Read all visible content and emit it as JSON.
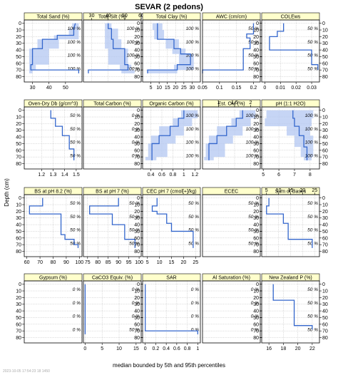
{
  "chart_data": {
    "type": "line",
    "title": "SEVAR (2 pedons)",
    "xlabel": "median bounded by 5th and 95th percentiles",
    "ylabel": "Depth (cm)",
    "footer_stamp": "2023-10-05 17:54:23 18 1450",
    "depth_ticks": [
      0,
      10,
      20,
      30,
      40,
      50,
      60,
      70,
      80
    ],
    "ylim": [
      -5,
      88
    ],
    "grid": true,
    "colors": {
      "median": "#3366cc",
      "band": "#b3c7f2",
      "strip": "#ffffcc"
    },
    "pct_depths": [
      8,
      28,
      48,
      68
    ],
    "panels": [
      {
        "name": "Total Sand (%)",
        "xlim": [
          25,
          60
        ],
        "ticks": [
          30,
          40,
          50
        ],
        "tick_axis": "bottom",
        "pct_labels": [
          "100 %",
          "100 %",
          "100 %",
          "100 %"
        ],
        "median": [
          [
            56,
            0
          ],
          [
            55,
            8
          ],
          [
            55,
            18
          ],
          [
            45,
            18
          ],
          [
            45,
            24
          ],
          [
            36,
            24
          ],
          [
            36,
            38
          ],
          [
            30,
            38
          ],
          [
            30,
            62
          ],
          [
            29,
            62
          ],
          [
            29,
            70
          ],
          [
            58,
            70
          ],
          [
            58,
            75
          ]
        ],
        "band": [
          [
            54,
            58,
            0
          ],
          [
            52,
            58,
            8
          ],
          [
            43,
            58,
            18
          ],
          [
            33,
            46,
            24
          ],
          [
            28,
            40,
            38
          ],
          [
            28,
            32,
            62
          ],
          [
            28,
            30,
            70
          ]
        ]
      },
      {
        "name": "Total Silt (%)",
        "xlim": [
          25,
          60
        ],
        "ticks": [
          30,
          40,
          50,
          60
        ],
        "tick_axis": "top",
        "pct_labels": [
          "100 %",
          "100 %",
          "100 %",
          "100 %"
        ],
        "median": [
          [
            40,
            0
          ],
          [
            40,
            8
          ],
          [
            42,
            8
          ],
          [
            42,
            24
          ],
          [
            43,
            24
          ],
          [
            43,
            38
          ],
          [
            50,
            38
          ],
          [
            50,
            62
          ],
          [
            52,
            62
          ],
          [
            52,
            70
          ],
          [
            28,
            70
          ],
          [
            28,
            75
          ]
        ],
        "band": [
          [
            38,
            42,
            0
          ],
          [
            38,
            46,
            8
          ],
          [
            38,
            48,
            24
          ],
          [
            40,
            52,
            38
          ],
          [
            47,
            54,
            62
          ],
          [
            48,
            56,
            70
          ]
        ]
      },
      {
        "name": "Total Clay (%)",
        "xlim": [
          0,
          35
        ],
        "ticks": [
          5,
          10,
          15,
          20,
          25,
          30
        ],
        "tick_axis": "bottom",
        "pct_labels": [
          "100 %",
          "100 %",
          "100 %",
          "100 %"
        ],
        "median": [
          [
            9,
            0
          ],
          [
            9,
            10
          ],
          [
            9,
            10
          ],
          [
            9,
            24
          ],
          [
            19,
            24
          ],
          [
            19,
            38
          ],
          [
            23,
            38
          ],
          [
            23,
            46
          ],
          [
            29,
            46
          ],
          [
            29,
            62
          ],
          [
            21,
            62
          ],
          [
            21,
            70
          ],
          [
            3,
            70
          ],
          [
            3,
            75
          ]
        ],
        "band": [
          [
            6,
            12,
            0
          ],
          [
            7,
            13,
            10
          ],
          [
            14,
            22,
            24
          ],
          [
            18,
            26,
            38
          ],
          [
            22,
            31,
            46
          ],
          [
            19,
            31,
            62
          ],
          [
            3,
            21,
            70
          ]
        ]
      },
      {
        "name": "AWC (cm/cm)",
        "xlim": [
          0.05,
          0.22
        ],
        "ticks": [
          0.05,
          0.1,
          0.15,
          0.2
        ],
        "tick_axis": "bottom",
        "pct_labels": [
          "50 %",
          "50 %",
          "50 %",
          "50 %"
        ],
        "median": [
          [
            0.2,
            0
          ],
          [
            0.2,
            16
          ],
          [
            0.18,
            16
          ],
          [
            0.18,
            22
          ],
          [
            0.19,
            22
          ],
          [
            0.19,
            38
          ],
          [
            0.17,
            38
          ],
          [
            0.17,
            70
          ],
          [
            0.05,
            70
          ],
          [
            0.05,
            75
          ]
        ],
        "band": []
      },
      {
        "name": "COLEws",
        "xlim": [
          -0.002,
          0.035
        ],
        "ticks": [
          0.0,
          0.01,
          0.02,
          0.03
        ],
        "tick_axis": "bottom",
        "pct_labels": [
          "50 %",
          "50 %",
          "50 %",
          "50 %"
        ],
        "median": [
          [
            0.012,
            0
          ],
          [
            0.012,
            12
          ],
          [
            0.008,
            12
          ],
          [
            0.008,
            20
          ],
          [
            0.003,
            20
          ],
          [
            0.003,
            40
          ],
          [
            0.03,
            40
          ],
          [
            0.03,
            62
          ],
          [
            0.034,
            62
          ],
          [
            0.034,
            70
          ]
        ],
        "band": []
      },
      {
        "name": "Oven-Dry Db (g/cm^3)",
        "xlim": [
          1.05,
          1.55
        ],
        "ticks": [
          1.2,
          1.3,
          1.4,
          1.5
        ],
        "tick_axis": "bottom",
        "pct_labels": [
          "50 %",
          "50 %",
          "50 %",
          "50 %"
        ],
        "median": [
          [
            1.28,
            0
          ],
          [
            1.28,
            12
          ],
          [
            1.32,
            12
          ],
          [
            1.32,
            24
          ],
          [
            1.38,
            24
          ],
          [
            1.38,
            38
          ],
          [
            1.44,
            38
          ],
          [
            1.44,
            58
          ],
          [
            1.48,
            58
          ],
          [
            1.48,
            75
          ]
        ],
        "band": []
      },
      {
        "name": "Total Carbon (%)",
        "xlim": [
          0,
          1
        ],
        "ticks": [],
        "tick_axis": "top",
        "pct_labels": [
          "0 %",
          "0 %",
          "0 %",
          "0 %"
        ],
        "median": [],
        "band": []
      },
      {
        "name": "Organic Carbon (%)",
        "xlim": [
          0.25,
          1.3
        ],
        "ticks": [
          0.4,
          0.6,
          0.8,
          1.0,
          1.2
        ],
        "tick_axis": "bottom",
        "pct_labels": [
          "100 %",
          "100 %",
          "100 %",
          "100 %"
        ],
        "median": [
          [
            1.0,
            0
          ],
          [
            1.0,
            12
          ],
          [
            0.9,
            12
          ],
          [
            0.9,
            24
          ],
          [
            0.75,
            24
          ],
          [
            0.75,
            38
          ],
          [
            0.55,
            38
          ],
          [
            0.55,
            50
          ],
          [
            0.42,
            50
          ],
          [
            0.42,
            75
          ]
        ],
        "band": [
          [
            0.95,
            1.25,
            0
          ],
          [
            0.8,
            1.15,
            12
          ],
          [
            0.55,
            1.0,
            24
          ],
          [
            0.4,
            0.85,
            38
          ],
          [
            0.35,
            0.7,
            50
          ],
          [
            0.3,
            0.5,
            70
          ]
        ]
      },
      {
        "name": "Est. OM (%)",
        "xlim": [
          0.5,
          2.3
        ],
        "ticks": [
          1.0,
          1.5,
          2.0
        ],
        "tick_axis": "top",
        "pct_labels": [
          "100 %",
          "100 %",
          "100 %",
          "100 %"
        ],
        "median": [
          [
            1.75,
            0
          ],
          [
            1.75,
            12
          ],
          [
            1.55,
            12
          ],
          [
            1.55,
            24
          ],
          [
            1.25,
            24
          ],
          [
            1.25,
            38
          ],
          [
            0.95,
            38
          ],
          [
            0.95,
            50
          ],
          [
            0.7,
            50
          ],
          [
            0.7,
            75
          ]
        ],
        "band": [
          [
            1.65,
            2.15,
            0
          ],
          [
            1.4,
            2.0,
            12
          ],
          [
            0.95,
            1.75,
            24
          ],
          [
            0.7,
            1.45,
            38
          ],
          [
            0.6,
            1.2,
            50
          ],
          [
            0.55,
            0.85,
            70
          ]
        ]
      },
      {
        "name": "pH (1:1 H2O)",
        "xlim": [
          4.9,
          8.6
        ],
        "ticks": [
          5,
          6,
          7,
          8
        ],
        "tick_axis": "bottom",
        "pct_labels": [
          "100 %",
          "100 %",
          "100 %",
          "100 %"
        ],
        "median": [
          [
            6.9,
            0
          ],
          [
            6.9,
            12
          ],
          [
            7.0,
            12
          ],
          [
            7.0,
            24
          ],
          [
            7.3,
            24
          ],
          [
            7.3,
            38
          ],
          [
            7.6,
            38
          ],
          [
            7.6,
            55
          ],
          [
            7.8,
            55
          ],
          [
            7.8,
            75
          ]
        ],
        "band": [
          [
            5.2,
            8.2,
            0
          ],
          [
            5.1,
            8.1,
            12
          ],
          [
            6.5,
            8.0,
            24
          ],
          [
            7.0,
            8.2,
            38
          ],
          [
            7.4,
            8.2,
            55
          ],
          [
            7.6,
            8.1,
            70
          ]
        ]
      },
      {
        "name": "BS at pH 8.2 (%)",
        "xlim": [
          58,
          102
        ],
        "ticks": [
          60,
          70,
          80,
          90,
          100
        ],
        "tick_axis": "bottom",
        "pct_labels": [
          "50 %",
          "50 %",
          "50 %",
          "50 %"
        ],
        "median": [
          [
            72,
            0
          ],
          [
            72,
            12
          ],
          [
            62,
            12
          ],
          [
            62,
            24
          ],
          [
            86,
            24
          ],
          [
            86,
            55
          ],
          [
            89,
            55
          ],
          [
            89,
            62
          ],
          [
            96,
            62
          ],
          [
            96,
            70
          ],
          [
            99,
            70
          ],
          [
            99,
            75
          ]
        ],
        "band": []
      },
      {
        "name": "BS at pH 7 (%)",
        "xlim": [
          73,
          101
        ],
        "ticks": [
          75,
          80,
          85,
          90,
          95,
          100
        ],
        "tick_axis": "bottom",
        "pct_labels": [
          "50 %",
          "50 %",
          "50 %",
          "50 %"
        ],
        "median": [
          [
            90,
            0
          ],
          [
            90,
            12
          ],
          [
            76,
            12
          ],
          [
            76,
            24
          ],
          [
            87,
            24
          ],
          [
            87,
            40
          ],
          [
            93,
            40
          ],
          [
            93,
            62
          ],
          [
            98,
            62
          ],
          [
            98,
            75
          ]
        ],
        "band": []
      },
      {
        "name": "CEC pH 7 (cmol[+]/kg)",
        "xlim": [
          3,
          27
        ],
        "ticks": [
          5,
          10,
          15,
          20,
          25
        ],
        "tick_axis": "bottom",
        "pct_labels": [
          "50 %",
          "50 %",
          "50 %",
          "50 %"
        ],
        "median": [
          [
            9,
            0
          ],
          [
            9,
            12
          ],
          [
            7,
            12
          ],
          [
            7,
            20
          ],
          [
            9,
            20
          ],
          [
            9,
            24
          ],
          [
            13,
            24
          ],
          [
            13,
            38
          ],
          [
            15,
            38
          ],
          [
            15,
            50
          ],
          [
            24,
            50
          ],
          [
            24,
            75
          ]
        ],
        "band": []
      },
      {
        "name": "ECEC",
        "xlim": [
          0,
          1
        ],
        "ticks": [],
        "tick_axis": "top",
        "pct_labels": [
          "50 %",
          "50 %",
          "50 %",
          "50 %"
        ],
        "median": [],
        "band": []
      },
      {
        "name": "Sum of Bases",
        "xlim": [
          3,
          27
        ],
        "ticks": [
          5,
          10,
          15,
          20,
          25
        ],
        "tick_axis": "top",
        "pct_labels": [
          "50 %",
          "50 %",
          "50 %",
          "50 %"
        ],
        "median": [
          [
            6,
            0
          ],
          [
            6,
            12
          ],
          [
            5,
            12
          ],
          [
            5,
            24
          ],
          [
            12,
            24
          ],
          [
            12,
            38
          ],
          [
            14,
            38
          ],
          [
            14,
            62
          ],
          [
            24,
            62
          ],
          [
            24,
            75
          ]
        ],
        "band": []
      },
      {
        "name": "Gypsum (%)",
        "xlim": [
          0,
          1
        ],
        "ticks": [],
        "tick_axis": "bottom",
        "pct_labels": [
          "0 %",
          "0 %",
          "0 %",
          "0 %"
        ],
        "median": [],
        "band": []
      },
      {
        "name": "CaCO3 Equiv. (%)",
        "xlim": [
          -0.5,
          16.5
        ],
        "ticks": [
          0,
          5,
          10,
          15
        ],
        "tick_axis": "bottom",
        "pct_labels": [
          "0 %",
          "0 %",
          "0 %",
          "50 %"
        ],
        "median": [
          [
            0,
            0
          ],
          [
            0,
            75
          ]
        ],
        "band": []
      },
      {
        "name": "SAR",
        "xlim": [
          -0.05,
          1.05
        ],
        "ticks": [
          0.0,
          0.2,
          0.4,
          0.6,
          0.8,
          1.0
        ],
        "tick_axis": "bottom",
        "pct_labels": [
          "0 %",
          "0 %",
          "0 %",
          "0 %"
        ],
        "median": [
          [
            0,
            0
          ],
          [
            0,
            70
          ],
          [
            1,
            70
          ],
          [
            1,
            75
          ]
        ],
        "band": []
      },
      {
        "name": "Al Saturation (%)",
        "xlim": [
          0,
          1
        ],
        "ticks": [],
        "tick_axis": "top",
        "pct_labels": [
          "0 %",
          "0 %",
          "0 %",
          "0 %"
        ],
        "median": [],
        "band": []
      },
      {
        "name": "New Zealand P (%)",
        "xlim": [
          15,
          23
        ],
        "ticks": [
          16,
          18,
          20,
          22
        ],
        "tick_axis": "bottom",
        "pct_labels": [
          "50 %",
          "50 %",
          "50 %",
          "50 %"
        ],
        "median": [
          [
            16.6,
            0
          ],
          [
            16.6,
            24
          ],
          [
            19.5,
            24
          ],
          [
            19.5,
            62
          ],
          [
            22,
            62
          ],
          [
            22,
            68
          ]
        ],
        "band": []
      }
    ]
  }
}
